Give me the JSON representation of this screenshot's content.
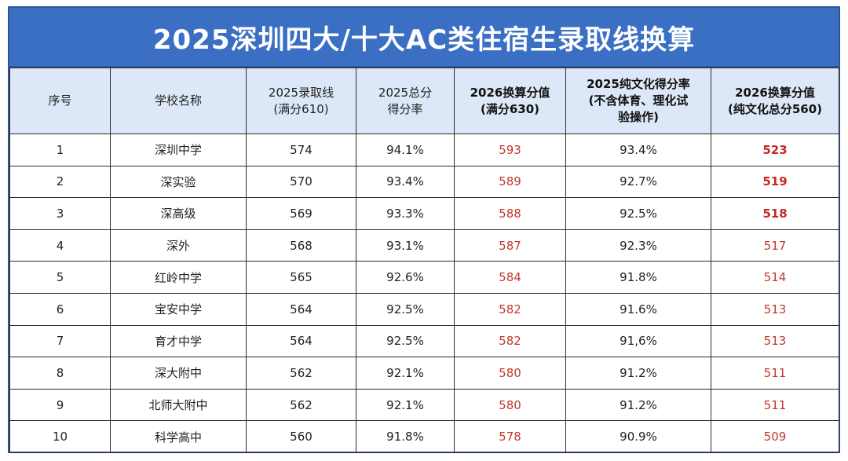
{
  "title": "2025深圳四大/十大AC类住宿生录取线换算",
  "headers": {
    "index": "序号",
    "school": "学校名称",
    "score2025_line1": "2025录取线",
    "score2025_line2": "(满分610)",
    "rate2025_line1": "2025总分",
    "rate2025_line2": "得分率",
    "conv2026_line1": "2026换算分值",
    "conv2026_line2": "(满分630)",
    "culture_rate_line1": "2025纯文化得分率",
    "culture_rate_line2": "(不含体育、理化试",
    "culture_rate_line3": "验操作)",
    "culture2026_line1": "2026换算分值",
    "culture2026_line2": "(纯文化总分560)"
  },
  "rows": [
    {
      "index": "1",
      "school": "深圳中学",
      "score2025": "574",
      "rate2025": "94.1%",
      "conv2026": "593",
      "culture_rate": "93.4%",
      "culture2026": "523"
    },
    {
      "index": "2",
      "school": "深实验",
      "score2025": "570",
      "rate2025": "93.4%",
      "conv2026": "589",
      "culture_rate": "92.7%",
      "culture2026": "519"
    },
    {
      "index": "3",
      "school": "深高级",
      "score2025": "569",
      "rate2025": "93.3%",
      "conv2026": "588",
      "culture_rate": "92.5%",
      "culture2026": "518"
    },
    {
      "index": "4",
      "school": "深外",
      "score2025": "568",
      "rate2025": "93.1%",
      "conv2026": "587",
      "culture_rate": "92.3%",
      "culture2026": "517"
    },
    {
      "index": "5",
      "school": "红岭中学",
      "score2025": "565",
      "rate2025": "92.6%",
      "conv2026": "584",
      "culture_rate": "91.8%",
      "culture2026": "514"
    },
    {
      "index": "6",
      "school": "宝安中学",
      "score2025": "564",
      "rate2025": "92.5%",
      "conv2026": "582",
      "culture_rate": "91.6%",
      "culture2026": "513"
    },
    {
      "index": "7",
      "school": "育才中学",
      "score2025": "564",
      "rate2025": "92.5%",
      "conv2026": "582",
      "culture_rate": "91,6%",
      "culture2026": "513"
    },
    {
      "index": "8",
      "school": "深大附中",
      "score2025": "562",
      "rate2025": "92.1%",
      "conv2026": "580",
      "culture_rate": "91.2%",
      "culture2026": "511"
    },
    {
      "index": "9",
      "school": "北师大附中",
      "score2025": "562",
      "rate2025": "92.1%",
      "conv2026": "580",
      "culture_rate": "91.2%",
      "culture2026": "511"
    },
    {
      "index": "10",
      "school": "科学高中",
      "score2025": "560",
      "rate2025": "91.8%",
      "conv2026": "578",
      "culture_rate": "90.9%",
      "culture2026": "509"
    }
  ],
  "colors": {
    "title_bg": "#3a6fc4",
    "header_bg": "#dce8f7",
    "highlight_red": "#c0392b"
  }
}
